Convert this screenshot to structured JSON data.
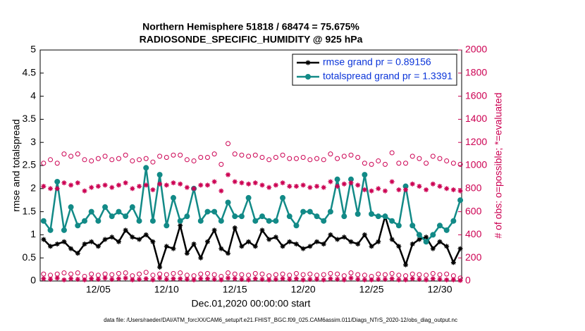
{
  "chart_data": {
    "type": "line",
    "title": "Northern Hemisphere 51818 / 68474 = 75.675%",
    "subtitle": "RADIOSONDE_SPECIFIC_HUMIDITY @ 925 hPa",
    "xlabel": "Dec.01,2020 00:00:00 start",
    "ylabel": "rmse and totalspread",
    "y2label": "# of obs: o=possible; *=evaluated",
    "footnote": "data file: /Users/raeder/DAI/ATM_forcXX/CAM6_setup/f.e21.FHIST_BGC.f09_025.CAM6assim.011/Diags_NTrS_2020-12/obs_diag_output.nc",
    "x": [
      1,
      1.5,
      2,
      2.5,
      3,
      3.5,
      4,
      4.5,
      5,
      5.5,
      6,
      6.5,
      7,
      7.5,
      8,
      8.5,
      9,
      9.5,
      10,
      10.5,
      11,
      11.5,
      12,
      12.5,
      13,
      13.5,
      14,
      14.5,
      15,
      15.5,
      16,
      16.5,
      17,
      17.5,
      18,
      18.5,
      19,
      19.5,
      20,
      20.5,
      21,
      21.5,
      22,
      22.5,
      23,
      23.5,
      24,
      24.5,
      25,
      25.5,
      26,
      26.5,
      27,
      27.5,
      28,
      28.5,
      29,
      29.5,
      30,
      30.5,
      31,
      31.5
    ],
    "xlim": [
      0.75,
      31.6
    ],
    "xticks": [
      {
        "value": 5,
        "label": "12/05"
      },
      {
        "value": 10,
        "label": "12/10"
      },
      {
        "value": 15,
        "label": "12/15"
      },
      {
        "value": 20,
        "label": "12/20"
      },
      {
        "value": 25,
        "label": "12/25"
      },
      {
        "value": 30,
        "label": "12/30"
      }
    ],
    "ylim": [
      0,
      5
    ],
    "yticks": [
      0,
      0.5,
      1,
      1.5,
      2,
      2.5,
      3,
      3.5,
      4,
      4.5,
      5
    ],
    "y2lim": [
      0,
      2000
    ],
    "y2ticks": [
      0,
      200,
      400,
      600,
      800,
      1000,
      1200,
      1400,
      1600,
      1800,
      2000
    ],
    "series": [
      {
        "name": "rmse grand pr = 0.89156",
        "color": "#000000",
        "marker": "asterisk",
        "line": true,
        "values": [
          0.9,
          0.75,
          0.8,
          0.85,
          0.7,
          0.6,
          0.8,
          0.85,
          0.75,
          0.9,
          0.95,
          0.85,
          1.1,
          0.95,
          0.9,
          1.0,
          0.85,
          0.3,
          0.75,
          0.7,
          1.2,
          0.6,
          0.8,
          0.5,
          0.85,
          1.1,
          0.7,
          0.6,
          1.15,
          0.75,
          0.85,
          0.75,
          1.1,
          0.9,
          0.95,
          0.75,
          0.85,
          0.8,
          0.7,
          0.75,
          0.85,
          0.8,
          1.0,
          0.9,
          0.95,
          0.85,
          0.8,
          1.0,
          0.75,
          0.85,
          1.4,
          0.9,
          0.75,
          0.35,
          0.8,
          0.9,
          0.95,
          0.7,
          0.85,
          0.75,
          0.4,
          0.7
        ]
      },
      {
        "name": "totalspread grand pr = 1.3391",
        "color": "#128a87",
        "marker": "dot",
        "line": true,
        "values": [
          1.3,
          1.1,
          2.15,
          1.1,
          1.6,
          1.2,
          1.3,
          1.5,
          1.3,
          1.6,
          1.4,
          1.5,
          1.4,
          1.6,
          1.3,
          2.45,
          1.3,
          2.3,
          1.2,
          1.8,
          1.3,
          1.4,
          2.0,
          1.3,
          1.5,
          1.5,
          1.3,
          1.7,
          1.4,
          1.4,
          1.8,
          1.3,
          1.4,
          1.3,
          1.3,
          1.8,
          1.4,
          1.2,
          1.5,
          1.5,
          1.4,
          1.3,
          1.5,
          2.2,
          1.4,
          2.2,
          1.45,
          2.3,
          1.45,
          1.4,
          1.4,
          1.3,
          1.2,
          2.05,
          1.2,
          1.0,
          0.85,
          1.0,
          1.2,
          1.1,
          1.3,
          1.75
        ]
      },
      {
        "axis": "y2",
        "color": "#cc0052",
        "marker": "circle",
        "line": false,
        "values": [
          1020,
          1050,
          1020,
          1100,
          1080,
          1100,
          1050,
          1040,
          1060,
          1080,
          1050,
          1060,
          1090,
          1040,
          1050,
          1060,
          1030,
          1080,
          1070,
          1090,
          1090,
          1050,
          1040,
          1070,
          1070,
          1100,
          1010,
          1190,
          1100,
          1090,
          1080,
          1090,
          1070,
          1050,
          1070,
          1090,
          1060,
          1060,
          1070,
          1050,
          1060,
          1050,
          1100,
          1060,
          1080,
          1090,
          1070,
          1020,
          1010,
          1040,
          1010,
          1110,
          1020,
          1020,
          1080,
          1060,
          1020,
          1080,
          1060,
          1040,
          1020,
          1010
        ]
      },
      {
        "axis": "y2",
        "color": "#cc0052",
        "marker": "asterisk",
        "line": false,
        "values": [
          820,
          800,
          800,
          850,
          830,
          850,
          780,
          810,
          820,
          830,
          810,
          830,
          850,
          800,
          820,
          830,
          790,
          840,
          830,
          850,
          840,
          810,
          800,
          830,
          830,
          860,
          780,
          920,
          860,
          850,
          840,
          850,
          830,
          810,
          830,
          850,
          820,
          820,
          830,
          810,
          820,
          810,
          860,
          820,
          840,
          850,
          830,
          790,
          780,
          800,
          780,
          860,
          790,
          790,
          840,
          820,
          790,
          840,
          820,
          800,
          790,
          780
        ]
      },
      {
        "axis": "y2",
        "color": "#cc0052",
        "marker": "circle",
        "line": false,
        "values": [
          60,
          50,
          60,
          70,
          60,
          70,
          40,
          60,
          50,
          60,
          55,
          65,
          70,
          45,
          60,
          75,
          50,
          60,
          55,
          65,
          70,
          50,
          45,
          60,
          65,
          55,
          40,
          70,
          60,
          55,
          50,
          65,
          60,
          45,
          55,
          60,
          50,
          65,
          55,
          60,
          50,
          55,
          65,
          60,
          45,
          70,
          55,
          50,
          40,
          60,
          55,
          65,
          50,
          45,
          60,
          55,
          50,
          65,
          55,
          60,
          45,
          25
        ]
      },
      {
        "axis": "y2",
        "color": "#cc0052",
        "marker": "asterisk",
        "line": false,
        "values": [
          20,
          15,
          25,
          10,
          20,
          15,
          10,
          20,
          15,
          25,
          15,
          20,
          25,
          10,
          15,
          20,
          10,
          25,
          15,
          20,
          20,
          15,
          10,
          20,
          20,
          15,
          10,
          25,
          20,
          15,
          10,
          20,
          15,
          10,
          15,
          20,
          15,
          20,
          10,
          15,
          15,
          10,
          20,
          15,
          10,
          25,
          15,
          10,
          10,
          15,
          15,
          20,
          10,
          10,
          20,
          15,
          10,
          20,
          15,
          10,
          10,
          5
        ]
      }
    ]
  }
}
